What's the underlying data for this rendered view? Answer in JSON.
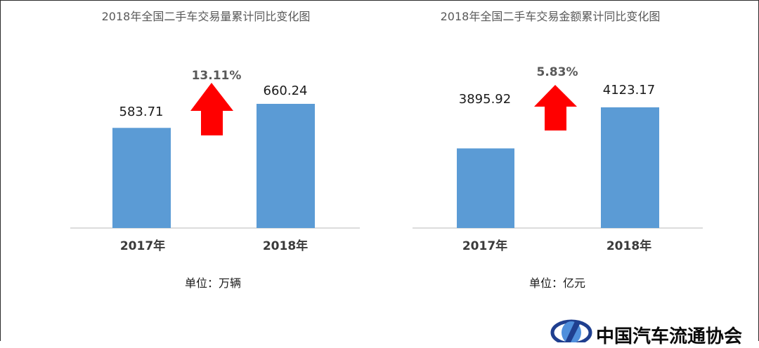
{
  "chart_data": [
    {
      "type": "bar",
      "title": "2018年全国二手车交易量累计同比变化图",
      "categories": [
        "2017年",
        "2018年"
      ],
      "values": [
        583.71,
        660.24
      ],
      "value_labels": [
        "583.71",
        "660.24"
      ],
      "growth_label": "13.11%",
      "unit_label": "单位：万辆",
      "bar_color": "#5b9bd5",
      "arrow_color": "#ff0000",
      "grid": false
    },
    {
      "type": "bar",
      "title": "2018年全国二手车交易金额累计同比变化图",
      "categories": [
        "2017年",
        "2018年"
      ],
      "values": [
        3895.92,
        4123.17
      ],
      "value_labels": [
        "3895.92",
        "4123.17"
      ],
      "growth_label": "5.83%",
      "unit_label": "单位：亿元",
      "bar_color": "#5b9bd5",
      "arrow_color": "#ff0000",
      "grid": false
    }
  ],
  "logo": {
    "text": "中国汽车流通协会",
    "icon": "association-logo-icon",
    "color": "#1f3f8f"
  }
}
